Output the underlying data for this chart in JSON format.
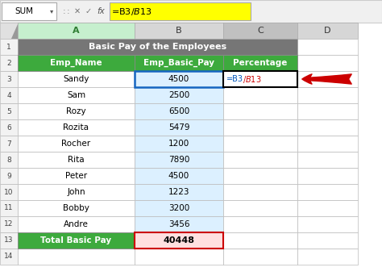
{
  "formula_bar_text": "=B3/$B$13",
  "col_headers": [
    "A",
    "B",
    "C",
    "D"
  ],
  "title_row": "Basic Pay of the Employees",
  "header_row": [
    "Emp_Name",
    "Emp_Basic_Pay",
    "Percentage"
  ],
  "data_rows": [
    [
      "Sandy",
      "4500"
    ],
    [
      "Sam",
      "2500"
    ],
    [
      "Rozy",
      "6500"
    ],
    [
      "Rozita",
      "5479"
    ],
    [
      "Rocher",
      "1200"
    ],
    [
      "Rita",
      "7890"
    ],
    [
      "Peter",
      "4500"
    ],
    [
      "John",
      "1223"
    ],
    [
      "Bobby",
      "3200"
    ],
    [
      "Andre",
      "3456"
    ]
  ],
  "total_label": "Total Basic Pay",
  "total_value": "40448",
  "colors": {
    "header_green": "#3DAA3D",
    "title_gray": "#767676",
    "title_text": "#FFFFFF",
    "header_text": "#FFFFFF",
    "total_green": "#3DAA3D",
    "total_value_bg": "#FFE0E0",
    "cell_white": "#FFFFFF",
    "grid_line": "#BBBBBB",
    "row_num_bg": "#F2F2F2",
    "col_header_bg": "#D6D6D6",
    "col_a_header_bg": "#C6EFCE",
    "col_c_header_bg": "#C0C0C0",
    "formula_bar_bg": "#FFFF00",
    "formula_bar_area": "#F0F0F0",
    "col_b_sel_bg": "#DCF0FF",
    "cell_b3_border": "#1565C0",
    "cell_c3_border": "#000000",
    "arrow_color": "#CC0000",
    "total_border": "#CC0000",
    "b3_text_color": "#0055BB",
    "dollar_text_color": "#CC0000"
  },
  "figsize": [
    4.74,
    3.47
  ],
  "dpi": 100
}
